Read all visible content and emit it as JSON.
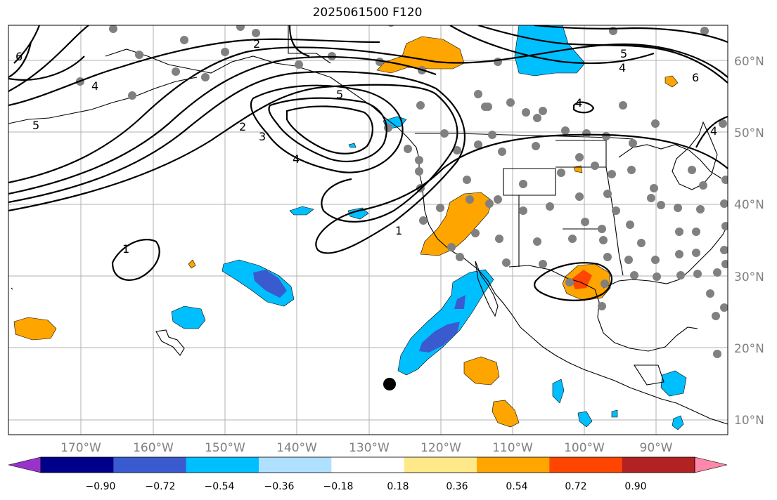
{
  "title": "2025061500 F120",
  "lon_labels": [
    "170°W",
    "160°W",
    "150°W",
    "140°W",
    "130°W",
    "120°W",
    "110°W",
    "100°W",
    "90°W"
  ],
  "lat_labels": [
    "60°N",
    "50°N",
    "40°N",
    "30°N",
    "20°N",
    "10°N"
  ],
  "contour_labels": [
    "6",
    "4",
    "5",
    "2",
    "2",
    "3",
    "4",
    "5",
    "1",
    "1",
    "4",
    "5",
    "4",
    "6",
    "4"
  ],
  "colorbar": {
    "tick_labels": [
      "−0.90",
      "−0.72",
      "−0.54",
      "−0.36",
      "−0.18",
      "0.18",
      "0.36",
      "0.54",
      "0.72",
      "0.90"
    ],
    "colors": [
      "#9932cc",
      "#00008b",
      "#3a5bd0",
      "#00bfff",
      "#b0e0ff",
      "#ffffff",
      "#ffe88a",
      "#ffa500",
      "#ff4500",
      "#b22222",
      "#ff88aa"
    ]
  },
  "marker": "black-circle"
}
